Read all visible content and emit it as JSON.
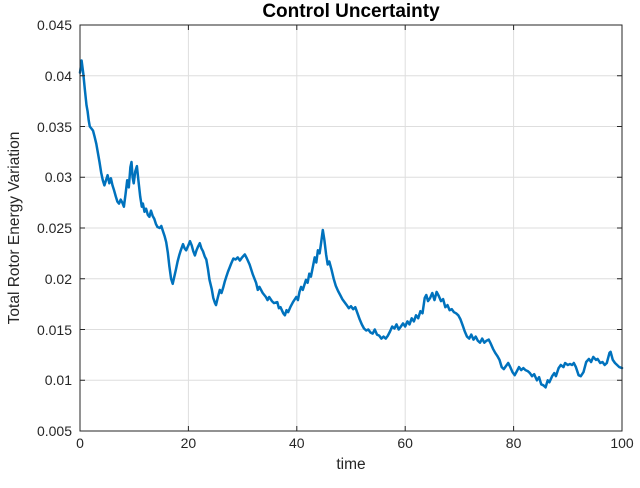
{
  "colors": {
    "line": "#0072BD",
    "axes": "#262626",
    "grid": "#dedede",
    "background": "#ffffff",
    "title_text": "#000000"
  },
  "chart_data": {
    "type": "line",
    "title": "Control Uncertainty",
    "xlabel": "time",
    "ylabel": "Total Rotor Energy Variation",
    "xlim": [
      0,
      100
    ],
    "ylim": [
      0.005,
      0.045
    ],
    "x_ticks": [
      0,
      20,
      40,
      60,
      80,
      100
    ],
    "x_tick_labels": [
      "0",
      "20",
      "40",
      "60",
      "80",
      "100"
    ],
    "y_ticks": [
      0.005,
      0.01,
      0.015,
      0.02,
      0.025,
      0.03,
      0.035,
      0.04,
      0.045
    ],
    "y_tick_labels": [
      "0.005",
      "0.01",
      "0.015",
      "0.02",
      "0.025",
      "0.03",
      "0.035",
      "0.04",
      "0.045"
    ],
    "grid": true,
    "legend": null,
    "line_width": 2.5,
    "series": [
      {
        "name": "total-rotor-energy-variation",
        "color": "#0072BD",
        "points": [
          [
            0,
            0.0403
          ],
          [
            0.3,
            0.0415
          ],
          [
            0.6,
            0.0402
          ],
          [
            0.9,
            0.0386
          ],
          [
            1.2,
            0.0371
          ],
          [
            1.4,
            0.0365
          ],
          [
            1.6,
            0.0356
          ],
          [
            1.8,
            0.035
          ],
          [
            2.1,
            0.0348
          ],
          [
            2.4,
            0.0346
          ],
          [
            2.7,
            0.034
          ],
          [
            3,
            0.0333
          ],
          [
            3.3,
            0.0324
          ],
          [
            3.6,
            0.0315
          ],
          [
            3.9,
            0.0305
          ],
          [
            4.2,
            0.0297
          ],
          [
            4.5,
            0.0292
          ],
          [
            4.8,
            0.0297
          ],
          [
            5.1,
            0.0302
          ],
          [
            5.4,
            0.0294
          ],
          [
            5.7,
            0.0299
          ],
          [
            6,
            0.0292
          ],
          [
            6.3,
            0.0287
          ],
          [
            6.6,
            0.0281
          ],
          [
            6.9,
            0.0276
          ],
          [
            7.2,
            0.0274
          ],
          [
            7.5,
            0.0278
          ],
          [
            7.8,
            0.0275
          ],
          [
            8.1,
            0.0271
          ],
          [
            8.4,
            0.0283
          ],
          [
            8.7,
            0.0297
          ],
          [
            9,
            0.029
          ],
          [
            9.3,
            0.031
          ],
          [
            9.5,
            0.0315
          ],
          [
            9.7,
            0.03
          ],
          [
            9.9,
            0.0294
          ],
          [
            10.2,
            0.0306
          ],
          [
            10.5,
            0.0311
          ],
          [
            10.8,
            0.0296
          ],
          [
            11.1,
            0.0281
          ],
          [
            11.4,
            0.0271
          ],
          [
            11.6,
            0.0274
          ],
          [
            11.9,
            0.0266
          ],
          [
            12.2,
            0.0269
          ],
          [
            12.5,
            0.0263
          ],
          [
            12.8,
            0.0261
          ],
          [
            13.1,
            0.0267
          ],
          [
            13.4,
            0.0262
          ],
          [
            13.7,
            0.0259
          ],
          [
            14,
            0.0254
          ],
          [
            14.3,
            0.0251
          ],
          [
            14.7,
            0.025
          ],
          [
            15,
            0.0252
          ],
          [
            15.3,
            0.0247
          ],
          [
            15.6,
            0.0242
          ],
          [
            15.9,
            0.0236
          ],
          [
            16.2,
            0.0226
          ],
          [
            16.5,
            0.0212
          ],
          [
            16.8,
            0.02
          ],
          [
            17.1,
            0.0195
          ],
          [
            17.4,
            0.0202
          ],
          [
            17.7,
            0.0209
          ],
          [
            18,
            0.0217
          ],
          [
            18.3,
            0.0223
          ],
          [
            18.6,
            0.0228
          ],
          [
            19,
            0.0234
          ],
          [
            19.3,
            0.023
          ],
          [
            19.6,
            0.0228
          ],
          [
            20,
            0.0233
          ],
          [
            20.3,
            0.0237
          ],
          [
            20.6,
            0.0233
          ],
          [
            20.9,
            0.0227
          ],
          [
            21.2,
            0.0223
          ],
          [
            21.5,
            0.0228
          ],
          [
            21.8,
            0.0232
          ],
          [
            22.1,
            0.0235
          ],
          [
            22.4,
            0.023
          ],
          [
            22.7,
            0.0227
          ],
          [
            23,
            0.0222
          ],
          [
            23.3,
            0.0219
          ],
          [
            23.6,
            0.021
          ],
          [
            23.9,
            0.0199
          ],
          [
            24.3,
            0.019
          ],
          [
            24.6,
            0.0181
          ],
          [
            24.9,
            0.0176
          ],
          [
            25.1,
            0.0174
          ],
          [
            25.4,
            0.0181
          ],
          [
            25.8,
            0.0189
          ],
          [
            26.1,
            0.0186
          ],
          [
            26.4,
            0.0191
          ],
          [
            26.7,
            0.0197
          ],
          [
            27,
            0.0202
          ],
          [
            27.3,
            0.0207
          ],
          [
            27.6,
            0.0211
          ],
          [
            27.9,
            0.0215
          ],
          [
            28.3,
            0.022
          ],
          [
            28.7,
            0.0219
          ],
          [
            29.1,
            0.0221
          ],
          [
            29.5,
            0.0218
          ],
          [
            29.9,
            0.0221
          ],
          [
            30.4,
            0.0224
          ],
          [
            30.8,
            0.022
          ],
          [
            31.3,
            0.0214
          ],
          [
            31.9,
            0.0204
          ],
          [
            32.5,
            0.0196
          ],
          [
            32.8,
            0.0189
          ],
          [
            33.1,
            0.0192
          ],
          [
            33.7,
            0.0186
          ],
          [
            34.3,
            0.0182
          ],
          [
            34.6,
            0.0179
          ],
          [
            34.9,
            0.0182
          ],
          [
            35.4,
            0.0178
          ],
          [
            35.8,
            0.0176
          ],
          [
            36.4,
            0.0177
          ],
          [
            36.7,
            0.0171
          ],
          [
            37,
            0.0172
          ],
          [
            37.5,
            0.0166
          ],
          [
            37.8,
            0.0164
          ],
          [
            38.1,
            0.0169
          ],
          [
            38.4,
            0.0167
          ],
          [
            38.8,
            0.0172
          ],
          [
            39.3,
            0.0177
          ],
          [
            39.9,
            0.0182
          ],
          [
            40.2,
            0.0179
          ],
          [
            40.5,
            0.0187
          ],
          [
            40.8,
            0.0192
          ],
          [
            41.1,
            0.0189
          ],
          [
            41.7,
            0.0199
          ],
          [
            42,
            0.0196
          ],
          [
            42.3,
            0.0205
          ],
          [
            42.6,
            0.0202
          ],
          [
            43,
            0.0213
          ],
          [
            43.3,
            0.0221
          ],
          [
            43.6,
            0.0216
          ],
          [
            43.9,
            0.0228
          ],
          [
            44.2,
            0.0225
          ],
          [
            44.5,
            0.0236
          ],
          [
            44.8,
            0.0248
          ],
          [
            45.1,
            0.0238
          ],
          [
            45.4,
            0.0224
          ],
          [
            45.7,
            0.0214
          ],
          [
            46,
            0.0217
          ],
          [
            46.4,
            0.0209
          ],
          [
            46.8,
            0.02
          ],
          [
            47.2,
            0.0193
          ],
          [
            47.6,
            0.0188
          ],
          [
            48,
            0.0184
          ],
          [
            48.4,
            0.018
          ],
          [
            48.8,
            0.0177
          ],
          [
            49.2,
            0.0174
          ],
          [
            49.6,
            0.0171
          ],
          [
            50,
            0.0173
          ],
          [
            50.4,
            0.017
          ],
          [
            50.8,
            0.0172
          ],
          [
            51.2,
            0.0166
          ],
          [
            51.6,
            0.016
          ],
          [
            52,
            0.0155
          ],
          [
            52.4,
            0.0151
          ],
          [
            52.8,
            0.0149
          ],
          [
            53.2,
            0.015
          ],
          [
            53.6,
            0.0147
          ],
          [
            54,
            0.0146
          ],
          [
            54.4,
            0.015
          ],
          [
            54.8,
            0.0145
          ],
          [
            55.2,
            0.0144
          ],
          [
            55.6,
            0.0141
          ],
          [
            56,
            0.0143
          ],
          [
            56.4,
            0.0141
          ],
          [
            56.8,
            0.0144
          ],
          [
            57.2,
            0.0148
          ],
          [
            57.6,
            0.0153
          ],
          [
            58,
            0.0151
          ],
          [
            58.4,
            0.0155
          ],
          [
            58.8,
            0.015
          ],
          [
            59.2,
            0.0153
          ],
          [
            59.6,
            0.0156
          ],
          [
            60,
            0.0153
          ],
          [
            60.4,
            0.0158
          ],
          [
            60.8,
            0.0155
          ],
          [
            61.2,
            0.0161
          ],
          [
            61.6,
            0.0158
          ],
          [
            62,
            0.0164
          ],
          [
            62.4,
            0.0161
          ],
          [
            62.8,
            0.0168
          ],
          [
            63.2,
            0.0166
          ],
          [
            63.6,
            0.0181
          ],
          [
            63.9,
            0.0184
          ],
          [
            64.2,
            0.0178
          ],
          [
            64.6,
            0.0181
          ],
          [
            65,
            0.0186
          ],
          [
            65.4,
            0.0179
          ],
          [
            65.8,
            0.0187
          ],
          [
            66.2,
            0.0183
          ],
          [
            66.6,
            0.0178
          ],
          [
            67,
            0.018
          ],
          [
            67.4,
            0.0172
          ],
          [
            67.8,
            0.0174
          ],
          [
            68.2,
            0.0169
          ],
          [
            68.6,
            0.017
          ],
          [
            69,
            0.0167
          ],
          [
            69.4,
            0.0166
          ],
          [
            69.8,
            0.0164
          ],
          [
            70.2,
            0.016
          ],
          [
            70.6,
            0.0154
          ],
          [
            71,
            0.0148
          ],
          [
            71.4,
            0.0143
          ],
          [
            71.8,
            0.0141
          ],
          [
            72.2,
            0.0145
          ],
          [
            72.6,
            0.014
          ],
          [
            73,
            0.0143
          ],
          [
            73.4,
            0.0139
          ],
          [
            73.8,
            0.0137
          ],
          [
            74.2,
            0.0141
          ],
          [
            74.6,
            0.0137
          ],
          [
            75,
            0.0139
          ],
          [
            75.4,
            0.014
          ],
          [
            75.8,
            0.0136
          ],
          [
            76.2,
            0.0131
          ],
          [
            76.6,
            0.0127
          ],
          [
            77,
            0.0124
          ],
          [
            77.4,
            0.012
          ],
          [
            77.8,
            0.0113
          ],
          [
            78.2,
            0.0111
          ],
          [
            78.6,
            0.0114
          ],
          [
            79,
            0.0117
          ],
          [
            79.4,
            0.0113
          ],
          [
            79.8,
            0.0108
          ],
          [
            80.2,
            0.0105
          ],
          [
            80.6,
            0.0109
          ],
          [
            81,
            0.0113
          ],
          [
            81.4,
            0.011
          ],
          [
            81.8,
            0.0112
          ],
          [
            82.2,
            0.011
          ],
          [
            82.6,
            0.0109
          ],
          [
            83,
            0.0107
          ],
          [
            83.4,
            0.0104
          ],
          [
            83.8,
            0.0106
          ],
          [
            84.3,
            0.01
          ],
          [
            84.7,
            0.0103
          ],
          [
            85.1,
            0.0096
          ],
          [
            85.5,
            0.0095
          ],
          [
            85.9,
            0.0093
          ],
          [
            86.3,
            0.01
          ],
          [
            86.6,
            0.0098
          ],
          [
            87.1,
            0.0104
          ],
          [
            87.5,
            0.0107
          ],
          [
            87.8,
            0.0104
          ],
          [
            88.3,
            0.0112
          ],
          [
            88.7,
            0.0115
          ],
          [
            89.2,
            0.0113
          ],
          [
            89.5,
            0.0117
          ],
          [
            90,
            0.0115
          ],
          [
            90.4,
            0.0116
          ],
          [
            90.8,
            0.0115
          ],
          [
            91.1,
            0.0117
          ],
          [
            91.5,
            0.0113
          ],
          [
            92,
            0.0105
          ],
          [
            92.4,
            0.0104
          ],
          [
            92.9,
            0.0108
          ],
          [
            93.4,
            0.0118
          ],
          [
            93.9,
            0.0121
          ],
          [
            94.3,
            0.0118
          ],
          [
            94.7,
            0.0123
          ],
          [
            95.2,
            0.012
          ],
          [
            95.5,
            0.0121
          ],
          [
            96,
            0.0117
          ],
          [
            96.4,
            0.0118
          ],
          [
            96.8,
            0.0115
          ],
          [
            97.2,
            0.0117
          ],
          [
            97.7,
            0.0127
          ],
          [
            97.9,
            0.0128
          ],
          [
            98.3,
            0.012
          ],
          [
            98.7,
            0.0117
          ],
          [
            99.1,
            0.0115
          ],
          [
            99.5,
            0.0113
          ],
          [
            100,
            0.0112
          ]
        ]
      }
    ]
  }
}
